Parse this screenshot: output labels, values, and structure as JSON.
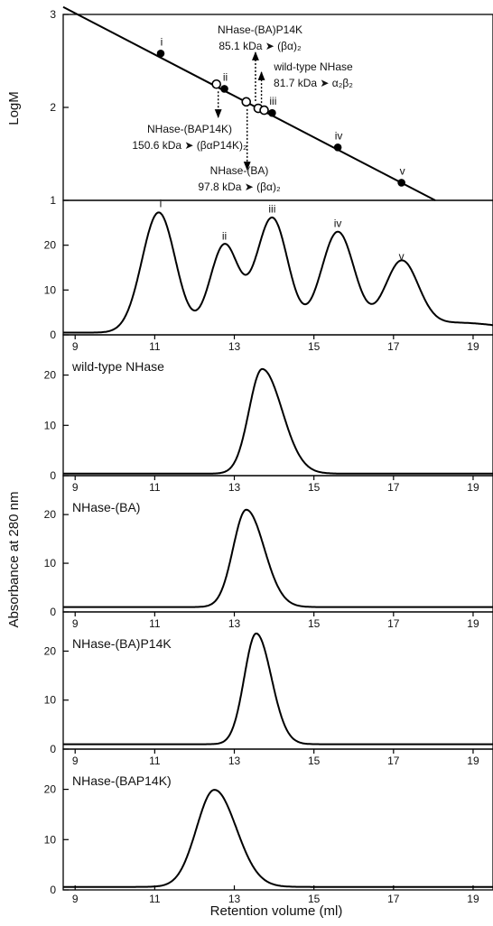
{
  "chart_data": [
    {
      "type": "scatter",
      "ylabel": "LogM",
      "xlim": [
        8.7,
        19.5
      ],
      "ylim": [
        1,
        3
      ],
      "yticks": [
        "1",
        "2",
        "3"
      ],
      "standard_points": [
        {
          "label": "i",
          "x": 11.15,
          "y": 2.58
        },
        {
          "label": "ii",
          "x": 12.75,
          "y": 2.2
        },
        {
          "label": "iii",
          "x": 13.95,
          "y": 1.94
        },
        {
          "label": "iv",
          "x": 15.6,
          "y": 1.57
        },
        {
          "label": "v",
          "x": 17.2,
          "y": 1.19
        }
      ],
      "sample_points": [
        {
          "x": 12.55,
          "y": 2.25
        },
        {
          "x": 13.3,
          "y": 2.06
        },
        {
          "x": 13.6,
          "y": 1.99
        },
        {
          "x": 13.75,
          "y": 1.97
        }
      ],
      "fit_line": {
        "x": [
          8.7,
          18.05
        ],
        "y": [
          3.08,
          1.0
        ]
      },
      "annotations": [
        {
          "line1": "NHase-(BA)P14K",
          "line2": "85.1 kDa ➤ (βα)₂"
        },
        {
          "line1": "wild-type NHase",
          "line2": "81.7 kDa ➤ α₂β₂"
        },
        {
          "line1": "NHase-(BAP14K)",
          "line2": "150.6 kDa ➤ (βαP14K)₂"
        },
        {
          "line1": "NHase-(BA)",
          "line2": "97.8 kDa ➤ (βα)₂"
        }
      ]
    },
    {
      "type": "line",
      "title": "",
      "xlim": [
        8.7,
        19.5
      ],
      "ylim": [
        0,
        30
      ],
      "yticks": [
        "0",
        "10",
        "20"
      ],
      "peak_labels": [
        {
          "label": "i",
          "x": 11.15
        },
        {
          "label": "ii",
          "x": 12.75
        },
        {
          "label": "iii",
          "x": 13.95
        },
        {
          "label": "iv",
          "x": 15.6
        },
        {
          "label": "v",
          "x": 17.2
        }
      ],
      "baseline": 0.5,
      "peaks": [
        {
          "center": 11.1,
          "height": 26.8,
          "width": 0.42
        },
        {
          "center": 12.75,
          "height": 19.5,
          "width": 0.36
        },
        {
          "center": 13.95,
          "height": 25.6,
          "width": 0.4
        },
        {
          "center": 15.6,
          "height": 22.4,
          "width": 0.42
        },
        {
          "center": 17.2,
          "height": 15.0,
          "width": 0.42
        }
      ]
    },
    {
      "type": "line",
      "title": "wild-type NHase",
      "xlim": [
        8.7,
        19.5
      ],
      "ylim": [
        0,
        28
      ],
      "xticks": [
        "9",
        "11",
        "13",
        "15",
        "17",
        "19"
      ],
      "yticks": [
        "0",
        "10",
        "20"
      ],
      "baseline": 0.4,
      "peaks": [
        {
          "center": 13.7,
          "height": 20.8,
          "width_left": 0.33,
          "width_right": 0.5
        }
      ]
    },
    {
      "type": "line",
      "title": "NHase-(BA)",
      "xlim": [
        8.7,
        19.5
      ],
      "ylim": [
        0,
        28
      ],
      "xticks": [
        "9",
        "11",
        "13",
        "15",
        "17",
        "19"
      ],
      "yticks": [
        "0",
        "10",
        "20"
      ],
      "baseline": 1.0,
      "peaks": [
        {
          "center": 13.3,
          "height": 20.0,
          "width_left": 0.33,
          "width_right": 0.45
        }
      ]
    },
    {
      "type": "line",
      "title": "NHase-(BA)P14K",
      "xlim": [
        8.7,
        19.5
      ],
      "ylim": [
        0,
        28
      ],
      "xticks": [
        "9",
        "11",
        "13",
        "15",
        "17",
        "19"
      ],
      "yticks": [
        "0",
        "10",
        "20"
      ],
      "baseline": 1.0,
      "peaks": [
        {
          "center": 13.55,
          "height": 22.6,
          "width_left": 0.3,
          "width_right": 0.38
        }
      ]
    },
    {
      "type": "line",
      "title": "NHase-(BAP14K)",
      "xlim": [
        8.7,
        19.5
      ],
      "ylim": [
        0,
        28
      ],
      "xticks": [
        "9",
        "11",
        "13",
        "15",
        "17",
        "19"
      ],
      "yticks": [
        "0",
        "10",
        "20"
      ],
      "baseline": 0.6,
      "peaks": [
        {
          "center": 12.5,
          "height": 19.3,
          "width_left": 0.45,
          "width_right": 0.55
        }
      ]
    }
  ],
  "labels": {
    "ylabel_chromatograms": "Absorbance at 280 nm",
    "xlabel": "Retention volume (ml)"
  }
}
